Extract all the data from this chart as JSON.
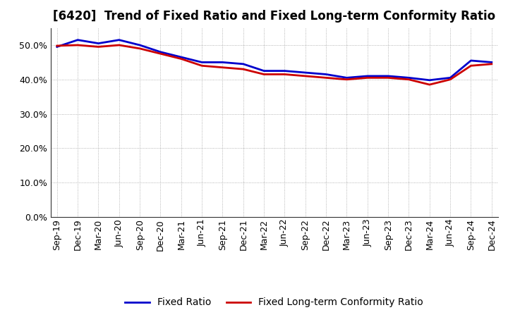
{
  "title": "[6420]  Trend of Fixed Ratio and Fixed Long-term Conformity Ratio",
  "x_labels": [
    "Sep-19",
    "Dec-19",
    "Mar-20",
    "Jun-20",
    "Sep-20",
    "Dec-20",
    "Mar-21",
    "Jun-21",
    "Sep-21",
    "Dec-21",
    "Mar-22",
    "Jun-22",
    "Sep-22",
    "Dec-22",
    "Mar-23",
    "Jun-23",
    "Sep-23",
    "Dec-23",
    "Mar-24",
    "Jun-24",
    "Sep-24",
    "Dec-24"
  ],
  "fixed_ratio": [
    49.5,
    51.5,
    50.5,
    51.5,
    50.0,
    48.0,
    46.5,
    45.0,
    45.0,
    44.5,
    42.5,
    42.5,
    42.0,
    41.5,
    40.5,
    41.0,
    41.0,
    40.5,
    39.8,
    40.5,
    45.5,
    45.0
  ],
  "fixed_lt_ratio": [
    49.8,
    50.0,
    49.5,
    50.0,
    49.0,
    47.5,
    46.0,
    44.0,
    43.5,
    43.0,
    41.5,
    41.5,
    41.0,
    40.5,
    40.0,
    40.5,
    40.5,
    40.0,
    38.5,
    40.0,
    44.0,
    44.5
  ],
  "fixed_ratio_color": "#0000cc",
  "fixed_lt_ratio_color": "#cc0000",
  "ylim": [
    0,
    55
  ],
  "yticks": [
    0,
    10,
    20,
    30,
    40,
    50
  ],
  "background_color": "#ffffff",
  "grid_color": "#888888",
  "title_fontsize": 12,
  "legend_fontsize": 10,
  "axis_fontsize": 9
}
